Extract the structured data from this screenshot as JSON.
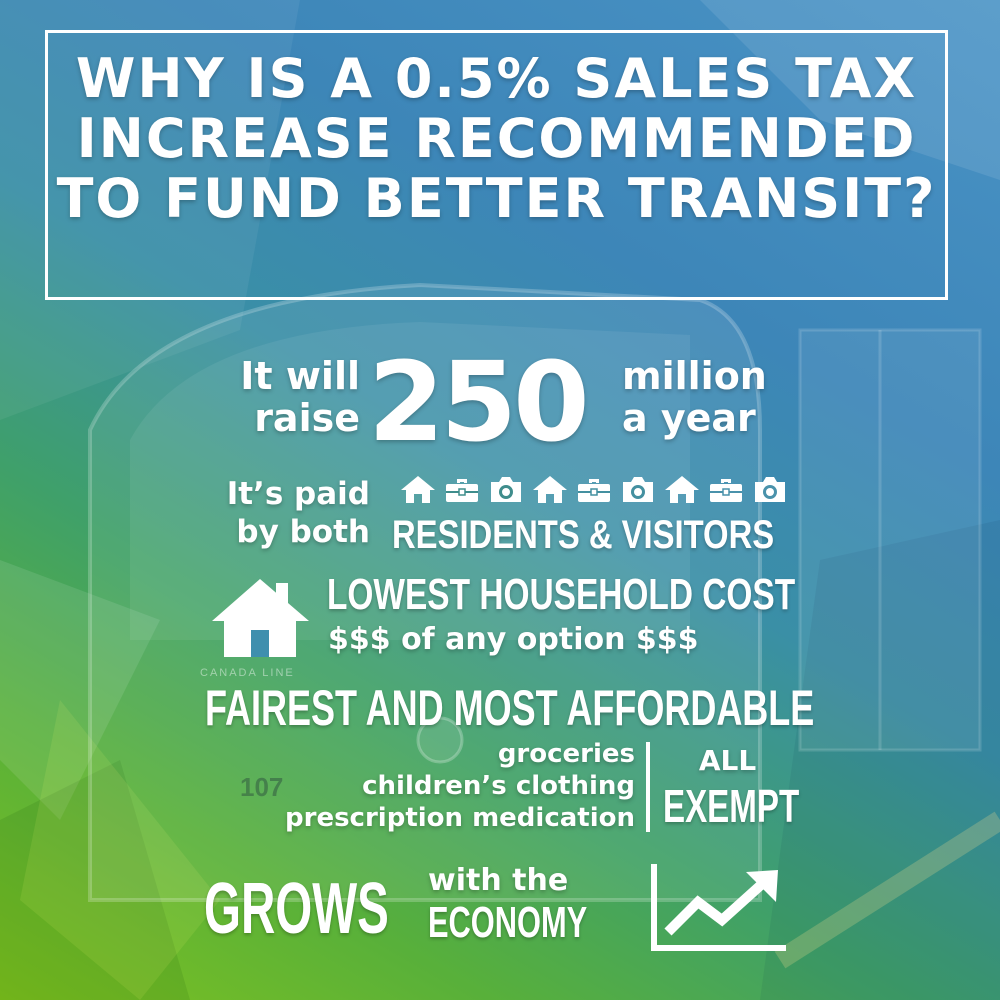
{
  "title": "WHY IS A 0.5% SALES TAX INCREASE RECOMMENDED TO FUND BETTER TRANSIT?",
  "revenue": {
    "left_line1": "It will",
    "left_line2": "raise",
    "amount": "250",
    "right_line1": "million",
    "right_line2": "a year"
  },
  "payers": {
    "left_line1": "It’s paid",
    "left_line2": "by both",
    "headline": "RESIDENTS & VISITORS",
    "icons": [
      "home-icon",
      "briefcase-icon",
      "camera-icon",
      "home-icon",
      "briefcase-icon",
      "camera-icon",
      "home-icon",
      "briefcase-icon",
      "camera-icon"
    ]
  },
  "household": {
    "icon": "house-icon",
    "headline": "LOWEST HOUSEHOLD COST",
    "subline": "$$$ of any option $$$"
  },
  "fairness": {
    "headline": "FAIREST AND MOST AFFORDABLE",
    "exempt_items": [
      "groceries",
      "children’s clothing",
      "prescription medication"
    ],
    "all_label": "ALL",
    "exempt_label": "EXEMPT"
  },
  "growth": {
    "grows": "GROWS",
    "with_the": "with the",
    "economy": "ECONOMY",
    "icon": "trending-up-chart-icon"
  },
  "background": {
    "train_label": "CANADA LINE",
    "car_number": "107",
    "colors": {
      "green": "#7fc21e",
      "teal": "#3fa06a",
      "blue": "#4a93c6"
    }
  }
}
